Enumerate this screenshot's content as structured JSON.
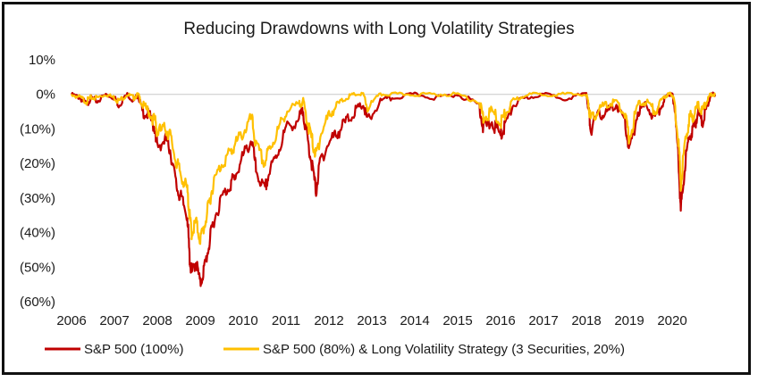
{
  "chart_data": {
    "type": "line",
    "title": "Reducing Drawdowns with Long Volatility Strategies",
    "xlabel": "",
    "ylabel": "",
    "ylim": [
      -60,
      10
    ],
    "xlim": [
      2006,
      2021
    ],
    "y_ticks": [
      10,
      0,
      -10,
      -20,
      -30,
      -40,
      -50,
      -60
    ],
    "y_tick_labels": [
      "10%",
      "0%",
      "(10%)",
      "(20%)",
      "(30%)",
      "(40%)",
      "(50%)",
      "(60%)"
    ],
    "x_ticks": [
      2006,
      2007,
      2008,
      2009,
      2010,
      2011,
      2012,
      2013,
      2014,
      2015,
      2016,
      2017,
      2018,
      2019,
      2020
    ],
    "x_tick_labels": [
      "2006",
      "2007",
      "2008",
      "2009",
      "2010",
      "2011",
      "2012",
      "2013",
      "2014",
      "2015",
      "2016",
      "2017",
      "2018",
      "2019",
      "2020"
    ],
    "grid": false,
    "legend_position": "bottom",
    "series": [
      {
        "name": "S&P 500 (100%)",
        "color": "#c00000",
        "x": [
          2006.0,
          2006.2,
          2006.35,
          2006.45,
          2006.6,
          2006.8,
          2007.0,
          2007.1,
          2007.3,
          2007.45,
          2007.55,
          2007.65,
          2007.8,
          2007.95,
          2008.0,
          2008.2,
          2008.3,
          2008.45,
          2008.55,
          2008.7,
          2008.75,
          2008.8,
          2008.9,
          2009.0,
          2009.1,
          2009.2,
          2009.3,
          2009.5,
          2009.7,
          2009.8,
          2010.0,
          2010.2,
          2010.3,
          2010.5,
          2010.6,
          2010.8,
          2011.0,
          2011.3,
          2011.4,
          2011.5,
          2011.6,
          2011.7,
          2011.8,
          2012.0,
          2012.2,
          2012.4,
          2012.6,
          2012.8,
          2012.9,
          2013.2,
          2013.5,
          2014.0,
          2014.5,
          2015.0,
          2015.5,
          2015.6,
          2015.8,
          2016.0,
          2016.1,
          2016.3,
          2016.6,
          2017.0,
          2017.5,
          2018.0,
          2018.05,
          2018.1,
          2018.3,
          2018.5,
          2018.7,
          2018.9,
          2019.0,
          2019.2,
          2019.4,
          2019.6,
          2019.8,
          2019.9,
          2020.0,
          2020.05,
          2020.15,
          2020.2,
          2020.3,
          2020.4,
          2020.5,
          2020.6,
          2020.7,
          2020.8,
          2020.9,
          2021.0
        ],
        "values": [
          0,
          -1,
          -3,
          -1,
          -2,
          0,
          -1,
          -3,
          0,
          -2,
          0,
          -5,
          -6,
          -10,
          -15,
          -13,
          -16,
          -27,
          -30,
          -35,
          -47,
          -52,
          -48,
          -55,
          -50,
          -44,
          -37,
          -30,
          -26,
          -24,
          -18,
          -13,
          -22,
          -28,
          -23,
          -17,
          -10,
          -7,
          -5,
          -13,
          -20,
          -28,
          -19,
          -14,
          -11,
          -8,
          -5,
          -3,
          -8,
          -2,
          -1,
          0,
          -1,
          0,
          -3,
          -10,
          -8,
          -12,
          -9,
          -3,
          -1,
          0,
          -1,
          0,
          -4,
          -10,
          -6,
          -5,
          -3,
          -8,
          -17,
          -5,
          -3,
          -7,
          -2,
          0,
          0,
          -3,
          -19,
          -34,
          -20,
          -12,
          -10,
          -5,
          -8,
          -4,
          0,
          0
        ]
      },
      {
        "name": "S&P 500 (80%) & Long Volatility Strategy (3 Securities, 20%)",
        "color": "#ffc000",
        "x": [
          2006.0,
          2006.2,
          2006.35,
          2006.45,
          2006.6,
          2006.8,
          2007.0,
          2007.1,
          2007.3,
          2007.45,
          2007.55,
          2007.65,
          2007.8,
          2007.95,
          2008.0,
          2008.2,
          2008.3,
          2008.45,
          2008.55,
          2008.7,
          2008.75,
          2008.8,
          2008.9,
          2009.0,
          2009.1,
          2009.2,
          2009.3,
          2009.5,
          2009.7,
          2009.8,
          2010.0,
          2010.2,
          2010.3,
          2010.5,
          2010.6,
          2010.8,
          2011.0,
          2011.3,
          2011.4,
          2011.5,
          2011.6,
          2011.7,
          2011.8,
          2012.0,
          2012.2,
          2012.4,
          2012.6,
          2012.8,
          2012.9,
          2013.2,
          2013.5,
          2014.0,
          2014.5,
          2015.0,
          2015.5,
          2015.6,
          2015.8,
          2016.0,
          2016.1,
          2016.3,
          2016.6,
          2017.0,
          2017.5,
          2018.0,
          2018.05,
          2018.1,
          2018.3,
          2018.5,
          2018.7,
          2018.9,
          2019.0,
          2019.2,
          2019.4,
          2019.6,
          2019.8,
          2019.9,
          2020.0,
          2020.05,
          2020.15,
          2020.2,
          2020.3,
          2020.4,
          2020.5,
          2020.6,
          2020.7,
          2020.8,
          2020.9,
          2021.0
        ],
        "values": [
          0,
          -1,
          -2,
          -1,
          -1,
          0,
          -1,
          -2,
          0,
          -1,
          0,
          -3,
          -5,
          -8,
          -11,
          -10,
          -12,
          -20,
          -23,
          -28,
          -35,
          -40,
          -37,
          -42,
          -38,
          -32,
          -26,
          -20,
          -17,
          -15,
          -11,
          -7,
          -15,
          -20,
          -16,
          -11,
          -5,
          -3,
          -2,
          -8,
          -13,
          -18,
          -12,
          -6,
          -3,
          -1,
          0,
          0,
          -4,
          0,
          0,
          0,
          0,
          0,
          -2,
          -7,
          -5,
          -8,
          -6,
          -2,
          0,
          0,
          0,
          0,
          -3,
          -8,
          -4,
          -3,
          -2,
          -6,
          -13,
          -3,
          -2,
          -5,
          -1,
          0,
          0,
          -2,
          -14,
          -26,
          -14,
          -7,
          -6,
          -3,
          -5,
          -2,
          0,
          0
        ]
      }
    ]
  }
}
